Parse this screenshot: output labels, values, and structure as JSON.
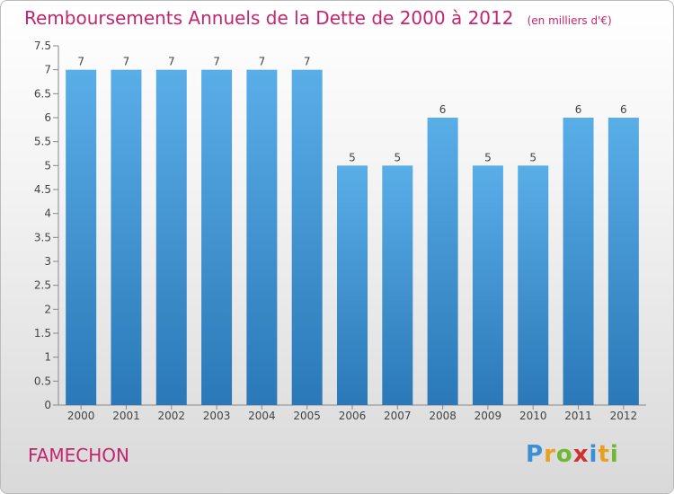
{
  "chart_data": {
    "type": "bar",
    "title": "Remboursements Annuels de la Dette de 2000 à 2012",
    "subtitle": "(en milliers d'€)",
    "categories": [
      "2000",
      "2001",
      "2002",
      "2003",
      "2004",
      "2005",
      "2006",
      "2007",
      "2008",
      "2009",
      "2010",
      "2011",
      "2012"
    ],
    "values": [
      7,
      7,
      7,
      7,
      7,
      7,
      5,
      5,
      6,
      5,
      5,
      6,
      6
    ],
    "data_labels": [
      "7",
      "7",
      "7",
      "7",
      "7",
      "7",
      "5",
      "5",
      "6",
      "5",
      "5",
      "6",
      "6"
    ],
    "ylim": [
      0,
      7.5
    ],
    "yticks": [
      0,
      0.5,
      1,
      1.5,
      2,
      2.5,
      3,
      3.5,
      4,
      4.5,
      5,
      5.5,
      6,
      6.5,
      7,
      7.5
    ],
    "ytick_labels": [
      "0",
      "0.5",
      "1",
      "1.5",
      "2",
      "2.5",
      "3",
      "3.5",
      "4",
      "4.5",
      "5",
      "5.5",
      "6",
      "6.5",
      "7",
      "7.5"
    ],
    "grid": false,
    "legend": "none",
    "bar_color_light": "#5aaee8",
    "bar_color_dark": "#2a78b8",
    "title_color": "#c2266e"
  },
  "commune": "FAMECHON",
  "logo": {
    "letters": [
      "P",
      "r",
      "o",
      "x",
      "i",
      "t",
      "i"
    ],
    "colors": [
      "#3a8fd6",
      "#e8a020",
      "#6fb830",
      "#d03030",
      "#3a8fd6",
      "#e8a020",
      "#6fb830"
    ]
  }
}
